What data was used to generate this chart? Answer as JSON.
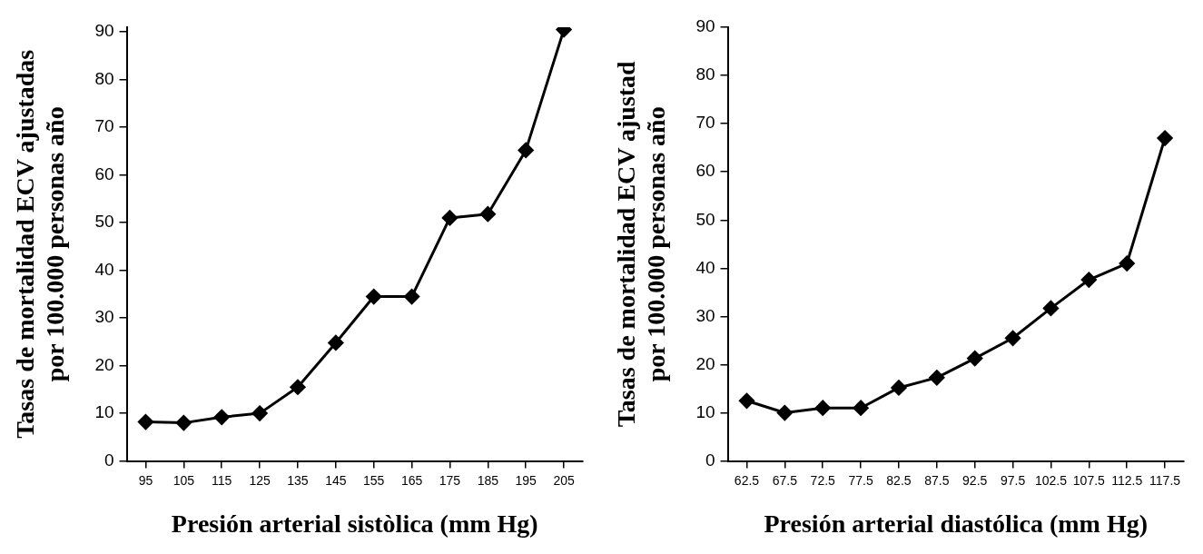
{
  "chart_data": [
    {
      "type": "line",
      "xlabel": "Presión arterial sistòlica (mm Hg)",
      "ylabel": "Tasas de mortalidad ECV ajustadas\npor 100.000 personas año",
      "categories": [
        "95",
        "105",
        "115",
        "125",
        "135",
        "145",
        "155",
        "165",
        "175",
        "185",
        "195",
        "205"
      ],
      "series": [
        {
          "color": "#000000",
          "values": [
            8.2,
            8,
            9.2,
            10,
            15.5,
            24.8,
            34.5,
            34.5,
            51,
            51.8,
            65.2,
            90.5
          ]
        }
      ],
      "ylim": [
        0,
        91
      ],
      "yticks": [
        0,
        10,
        20,
        30,
        40,
        50,
        60,
        70,
        80,
        90
      ],
      "grid": false,
      "legend": false,
      "marker": "diamond",
      "line_style": "solid"
    },
    {
      "type": "line",
      "xlabel": "Presión arterial diastólica (mm Hg)",
      "ylabel": "Tasas de mortalidad ECV ajustad\npor 100.000 personas año",
      "categories": [
        "62.5",
        "67.5",
        "72.5",
        "77.5",
        "82.5",
        "87.5",
        "92.5",
        "97.5",
        "102.5",
        "107.5",
        "112.5",
        "117.5"
      ],
      "series": [
        {
          "color": "#000000",
          "values": [
            12.5,
            10,
            11,
            11,
            15.2,
            17.3,
            21.3,
            25.5,
            31.7,
            37.6,
            41,
            67
          ]
        }
      ],
      "ylim": [
        0,
        90
      ],
      "yticks": [
        0,
        10,
        20,
        30,
        40,
        50,
        60,
        70,
        80,
        90
      ],
      "grid": false,
      "legend": false,
      "marker": "diamond",
      "line_style": "solid"
    }
  ]
}
